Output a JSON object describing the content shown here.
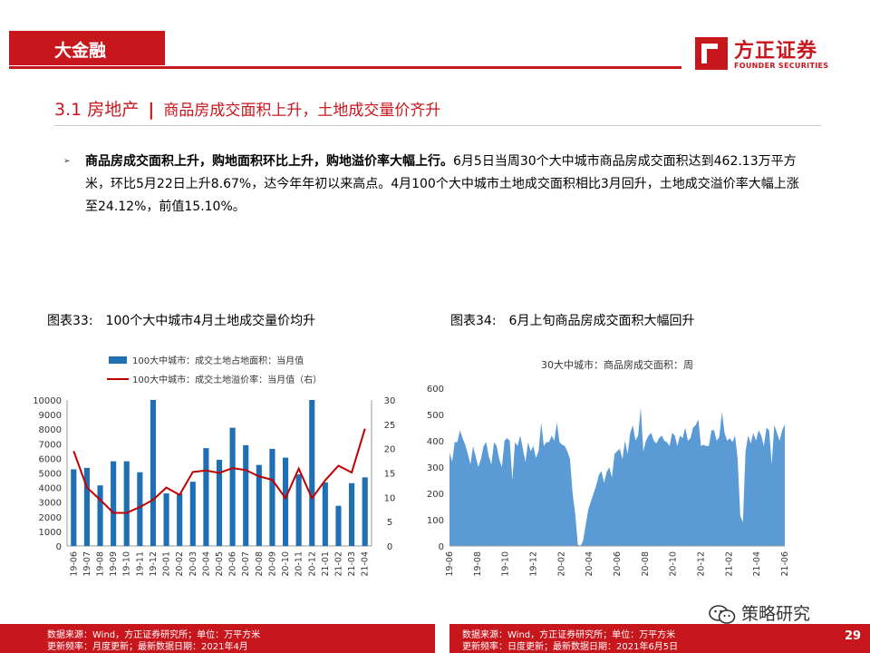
{
  "header": {
    "tab_label": "大金融"
  },
  "logo": {
    "cn": "方正证券",
    "en": "FOUNDER SECURITIES"
  },
  "section": {
    "number": "3.1",
    "name": "房地产",
    "separator": "|",
    "subtitle": "商品房成交面积上升，土地成交量价齐升"
  },
  "paragraph": {
    "bold": "商品房成交面积上升，购地面积环比上升，购地溢价率大幅上行。",
    "text": "6月5日当周30个大中城市商品房成交面积达到462.13万平方米，环比5月22日上升8.67%，达今年年初以来高点。4月100个大中城市土地成交面积相比3月回升，土地成交溢价率大幅上涨至24.12%，前值15.10%。"
  },
  "figure33": {
    "label": "图表33:",
    "title": "100个大中城市4月土地成交量价均升",
    "chart_data": {
      "type": "bar",
      "categories": [
        "19-06",
        "19-07",
        "19-08",
        "19-09",
        "19-10",
        "19-11",
        "19-12",
        "20-01",
        "20-02",
        "20-03",
        "20-04",
        "20-05",
        "20-06",
        "20-07",
        "20-08",
        "20-09",
        "20-10",
        "20-11",
        "20-12",
        "21-01",
        "21-02",
        "21-03",
        "21-04"
      ],
      "series": [
        {
          "name": "100大中城市：成交土地占地面积：当月值",
          "type": "bar",
          "axis": "left",
          "color": "#1f6fb5",
          "values": [
            5250,
            5350,
            4150,
            5800,
            5800,
            5050,
            10000,
            3600,
            3600,
            4400,
            6700,
            5900,
            8100,
            6900,
            5550,
            6650,
            6050,
            4900,
            10000,
            4350,
            2750,
            4300,
            4700
          ]
        },
        {
          "name": "100大中城市：成交土地溢价率：当月值（右）",
          "type": "line",
          "axis": "right",
          "color": "#c00000",
          "values": [
            19.5,
            12,
            9.5,
            6.8,
            6.8,
            8,
            9.5,
            12,
            10.5,
            15.2,
            15.5,
            15,
            16,
            15.6,
            14.3,
            13.6,
            9.8,
            15.9,
            9.8,
            13.5,
            16.5,
            15.1,
            24.1
          ]
        }
      ],
      "ylim_left": [
        0,
        10000
      ],
      "yticks_left": [
        0,
        1000,
        2000,
        3000,
        4000,
        5000,
        6000,
        7000,
        8000,
        9000,
        10000
      ],
      "ylim_right": [
        0,
        30
      ],
      "yticks_right": [
        0,
        5,
        10,
        15,
        20,
        25,
        30
      ],
      "legend": "top"
    },
    "source": "数据来源：Wind，方正证券研究所；单位：万平方米",
    "frequency": "更新频率：月度更新；最新数据日期：2021年4月"
  },
  "figure34": {
    "label": "图表34:",
    "title": "6月上旬商品房成交面积大幅回升",
    "chart_data": {
      "type": "area",
      "title": "30大中城市：商品房成交面积：周",
      "color": "#5b9bd5",
      "x_start": "2019-06",
      "x_end": "2021-06",
      "values": [
        355,
        320,
        395,
        395,
        440,
        410,
        385,
        350,
        310,
        380,
        340,
        300,
        330,
        380,
        395,
        340,
        310,
        395,
        380,
        330,
        300,
        400,
        410,
        400,
        250,
        395,
        380,
        420,
        370,
        320,
        395,
        360,
        380,
        335,
        360,
        470,
        380,
        395,
        395,
        420,
        400,
        470,
        395,
        385,
        380,
        360,
        330,
        200,
        120,
        5,
        0,
        20,
        80,
        140,
        170,
        200,
        230,
        270,
        285,
        240,
        280,
        300,
        260,
        350,
        360,
        370,
        330,
        400,
        350,
        430,
        460,
        400,
        420,
        525,
        360,
        400,
        420,
        430,
        400,
        390,
        410,
        420,
        400,
        395,
        380,
        430,
        420,
        380,
        420,
        410,
        450,
        400,
        410,
        450,
        460,
        480,
        380,
        385,
        380,
        380,
        440,
        440,
        400,
        415,
        510,
        430,
        400,
        410,
        395,
        420,
        330,
        115,
        90,
        360,
        420,
        390,
        430,
        400,
        440,
        420,
        380,
        450,
        440,
        310,
        460,
        430,
        400,
        440,
        462
      ],
      "ylim": [
        0,
        600
      ],
      "yticks": [
        0,
        100,
        200,
        300,
        400,
        500,
        600
      ],
      "xticks": [
        "19-06",
        "19-08",
        "19-10",
        "19-12",
        "20-02",
        "20-04",
        "20-06",
        "20-08",
        "20-10",
        "20-12",
        "21-02",
        "21-04",
        "21-06"
      ]
    },
    "source": "数据来源：Wind，方正证券研究所；单位：万平方米",
    "frequency": "更新频率：日度更新；最新数据日期：2021年6月5日"
  },
  "watermark": {
    "text": "策略研究"
  },
  "footer": {
    "page_number": "29"
  },
  "colors": {
    "brand_red": "#c8161d",
    "bar_blue": "#1f6fb5",
    "line_red": "#c00000",
    "area_blue": "#5b9bd5"
  }
}
